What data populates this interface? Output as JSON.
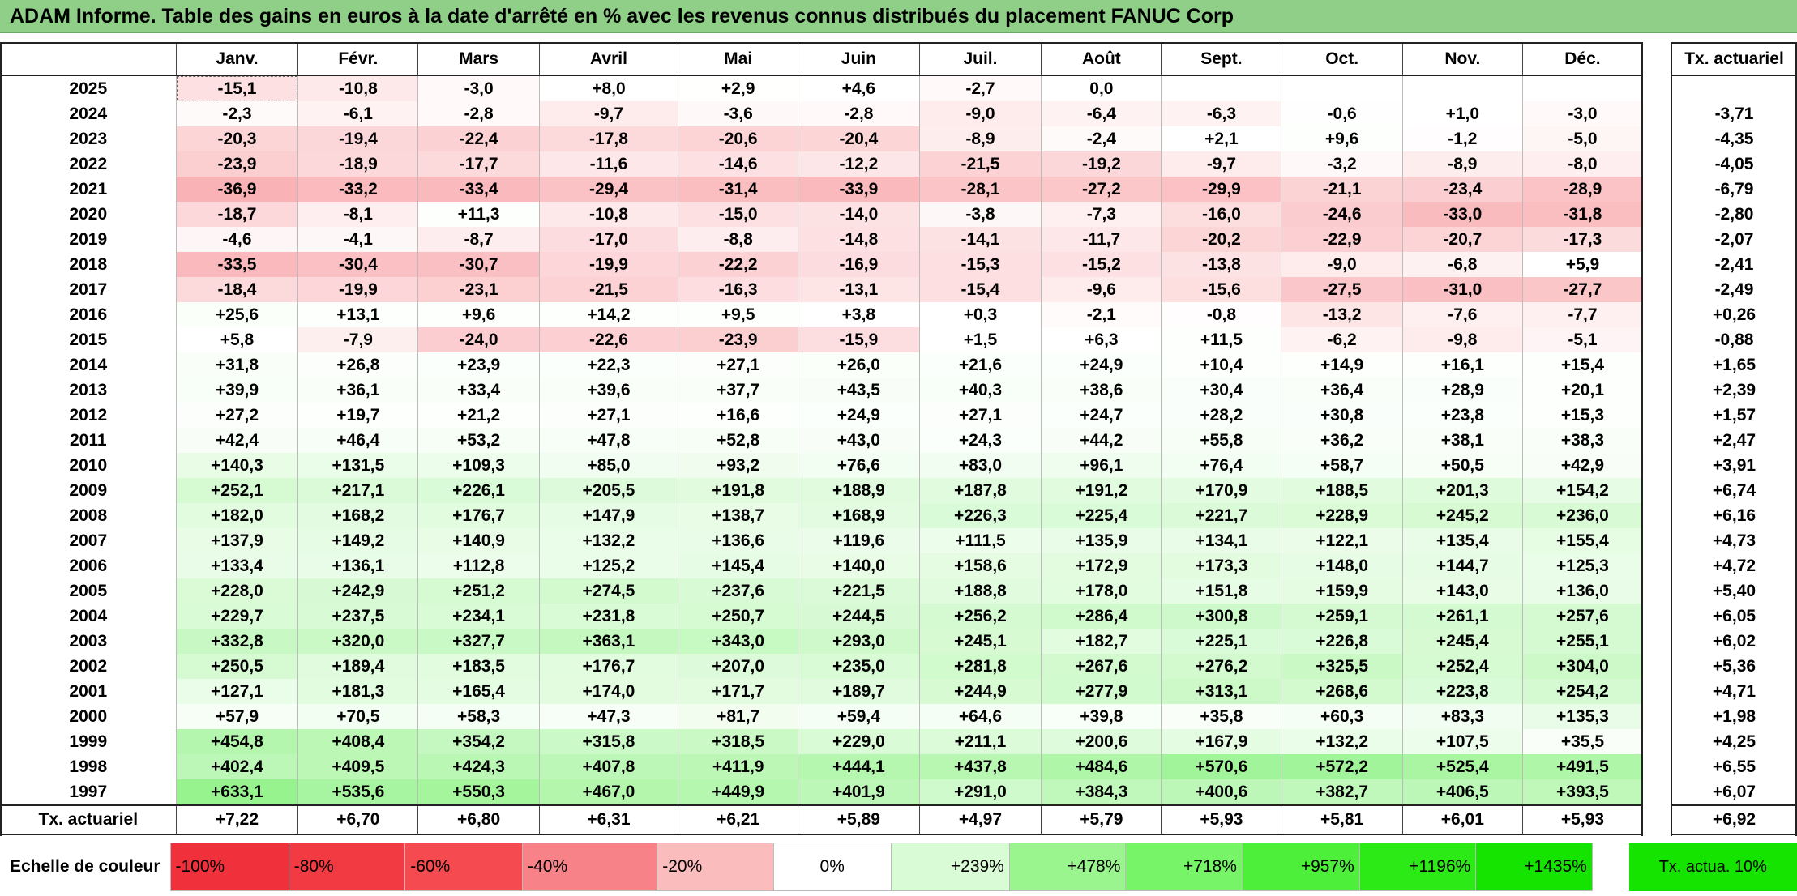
{
  "title": "ADAM Informe. Table des gains en euros à la date d'arrêté en % avec les revenus connus distribués du placement FANUC Corp",
  "months": [
    "Janv.",
    "Févr.",
    "Mars",
    "Avril",
    "Mai",
    "Juin",
    "Juil.",
    "Août",
    "Sept.",
    "Oct.",
    "Nov.",
    "Déc."
  ],
  "side_header": "Tx. actuariel",
  "rows": [
    {
      "year": "2025",
      "values": [
        "-15,1",
        "-10,8",
        "-3,0",
        "+8,0",
        "+2,9",
        "+4,6",
        "-2,7",
        "0,0",
        "",
        "",
        "",
        ""
      ],
      "rate": ""
    },
    {
      "year": "2024",
      "values": [
        "-2,3",
        "-6,1",
        "-2,8",
        "-9,7",
        "-3,6",
        "-2,8",
        "-9,0",
        "-6,4",
        "-6,3",
        "-0,6",
        "+1,0",
        "-3,0"
      ],
      "rate": "-3,71"
    },
    {
      "year": "2023",
      "values": [
        "-20,3",
        "-19,4",
        "-22,4",
        "-17,8",
        "-20,6",
        "-20,4",
        "-8,9",
        "-2,4",
        "+2,1",
        "+9,6",
        "-1,2",
        "-5,0"
      ],
      "rate": "-4,35"
    },
    {
      "year": "2022",
      "values": [
        "-23,9",
        "-18,9",
        "-17,7",
        "-11,6",
        "-14,6",
        "-12,2",
        "-21,5",
        "-19,2",
        "-9,7",
        "-3,2",
        "-8,9",
        "-8,0"
      ],
      "rate": "-4,05"
    },
    {
      "year": "2021",
      "values": [
        "-36,9",
        "-33,2",
        "-33,4",
        "-29,4",
        "-31,4",
        "-33,9",
        "-28,1",
        "-27,2",
        "-29,9",
        "-21,1",
        "-23,4",
        "-28,9"
      ],
      "rate": "-6,79"
    },
    {
      "year": "2020",
      "values": [
        "-18,7",
        "-8,1",
        "+11,3",
        "-10,8",
        "-15,0",
        "-14,0",
        "-3,8",
        "-7,3",
        "-16,0",
        "-24,6",
        "-33,0",
        "-31,8"
      ],
      "rate": "-2,80"
    },
    {
      "year": "2019",
      "values": [
        "-4,6",
        "-4,1",
        "-8,7",
        "-17,0",
        "-8,8",
        "-14,8",
        "-14,1",
        "-11,7",
        "-20,2",
        "-22,9",
        "-20,7",
        "-17,3"
      ],
      "rate": "-2,07"
    },
    {
      "year": "2018",
      "values": [
        "-33,5",
        "-30,4",
        "-30,7",
        "-19,9",
        "-22,2",
        "-16,9",
        "-15,3",
        "-15,2",
        "-13,8",
        "-9,0",
        "-6,8",
        "+5,9"
      ],
      "rate": "-2,41"
    },
    {
      "year": "2017",
      "values": [
        "-18,4",
        "-19,9",
        "-23,1",
        "-21,5",
        "-16,3",
        "-13,1",
        "-15,4",
        "-9,6",
        "-15,6",
        "-27,5",
        "-31,0",
        "-27,7"
      ],
      "rate": "-2,49"
    },
    {
      "year": "2016",
      "values": [
        "+25,6",
        "+13,1",
        "+9,6",
        "+14,2",
        "+9,5",
        "+3,8",
        "+0,3",
        "-2,1",
        "-0,8",
        "-13,2",
        "-7,6",
        "-7,7"
      ],
      "rate": "+0,26"
    },
    {
      "year": "2015",
      "values": [
        "+5,8",
        "-7,9",
        "-24,0",
        "-22,6",
        "-23,9",
        "-15,9",
        "+1,5",
        "+6,3",
        "+11,5",
        "-6,2",
        "-9,8",
        "-5,1"
      ],
      "rate": "-0,88"
    },
    {
      "year": "2014",
      "values": [
        "+31,8",
        "+26,8",
        "+23,9",
        "+22,3",
        "+27,1",
        "+26,0",
        "+21,6",
        "+24,9",
        "+10,4",
        "+14,9",
        "+16,1",
        "+15,4"
      ],
      "rate": "+1,65"
    },
    {
      "year": "2013",
      "values": [
        "+39,9",
        "+36,1",
        "+33,4",
        "+39,6",
        "+37,7",
        "+43,5",
        "+40,3",
        "+38,6",
        "+30,4",
        "+36,4",
        "+28,9",
        "+20,1"
      ],
      "rate": "+2,39"
    },
    {
      "year": "2012",
      "values": [
        "+27,2",
        "+19,7",
        "+21,2",
        "+27,1",
        "+16,6",
        "+24,9",
        "+27,1",
        "+24,7",
        "+28,2",
        "+30,8",
        "+23,8",
        "+15,3"
      ],
      "rate": "+1,57"
    },
    {
      "year": "2011",
      "values": [
        "+42,4",
        "+46,4",
        "+53,2",
        "+47,8",
        "+52,8",
        "+43,0",
        "+24,3",
        "+44,2",
        "+55,8",
        "+36,2",
        "+38,1",
        "+38,3"
      ],
      "rate": "+2,47"
    },
    {
      "year": "2010",
      "values": [
        "+140,3",
        "+131,5",
        "+109,3",
        "+85,0",
        "+93,2",
        "+76,6",
        "+83,0",
        "+96,1",
        "+76,4",
        "+58,7",
        "+50,5",
        "+42,9"
      ],
      "rate": "+3,91"
    },
    {
      "year": "2009",
      "values": [
        "+252,1",
        "+217,1",
        "+226,1",
        "+205,5",
        "+191,8",
        "+188,9",
        "+187,8",
        "+191,2",
        "+170,9",
        "+188,5",
        "+201,3",
        "+154,2"
      ],
      "rate": "+6,74"
    },
    {
      "year": "2008",
      "values": [
        "+182,0",
        "+168,2",
        "+176,7",
        "+147,9",
        "+138,7",
        "+168,9",
        "+226,3",
        "+225,4",
        "+221,7",
        "+228,9",
        "+245,2",
        "+236,0"
      ],
      "rate": "+6,16"
    },
    {
      "year": "2007",
      "values": [
        "+137,9",
        "+149,2",
        "+140,9",
        "+132,2",
        "+136,6",
        "+119,6",
        "+111,5",
        "+135,9",
        "+134,1",
        "+122,1",
        "+135,4",
        "+155,4"
      ],
      "rate": "+4,73"
    },
    {
      "year": "2006",
      "values": [
        "+133,4",
        "+136,1",
        "+112,8",
        "+125,2",
        "+145,4",
        "+140,0",
        "+158,6",
        "+172,9",
        "+173,3",
        "+148,0",
        "+144,7",
        "+125,3"
      ],
      "rate": "+4,72"
    },
    {
      "year": "2005",
      "values": [
        "+228,0",
        "+242,9",
        "+251,2",
        "+274,5",
        "+237,6",
        "+221,5",
        "+188,8",
        "+178,0",
        "+151,8",
        "+159,9",
        "+143,0",
        "+136,0"
      ],
      "rate": "+5,40"
    },
    {
      "year": "2004",
      "values": [
        "+229,7",
        "+237,5",
        "+234,1",
        "+231,8",
        "+250,7",
        "+244,5",
        "+256,2",
        "+286,4",
        "+300,8",
        "+259,1",
        "+261,1",
        "+257,6"
      ],
      "rate": "+6,05"
    },
    {
      "year": "2003",
      "values": [
        "+332,8",
        "+320,0",
        "+327,7",
        "+363,1",
        "+343,0",
        "+293,0",
        "+245,1",
        "+182,7",
        "+225,1",
        "+226,8",
        "+245,4",
        "+255,1"
      ],
      "rate": "+6,02"
    },
    {
      "year": "2002",
      "values": [
        "+250,5",
        "+189,4",
        "+183,5",
        "+176,7",
        "+207,0",
        "+235,0",
        "+281,8",
        "+267,6",
        "+276,2",
        "+325,5",
        "+252,4",
        "+304,0"
      ],
      "rate": "+5,36"
    },
    {
      "year": "2001",
      "values": [
        "+127,1",
        "+181,3",
        "+165,4",
        "+174,0",
        "+171,7",
        "+189,7",
        "+244,9",
        "+277,9",
        "+313,1",
        "+268,6",
        "+223,8",
        "+254,2"
      ],
      "rate": "+4,71"
    },
    {
      "year": "2000",
      "values": [
        "+57,9",
        "+70,5",
        "+58,3",
        "+47,3",
        "+81,7",
        "+59,4",
        "+64,6",
        "+39,8",
        "+35,8",
        "+60,3",
        "+83,3",
        "+135,3"
      ],
      "rate": "+1,98"
    },
    {
      "year": "1999",
      "values": [
        "+454,8",
        "+408,4",
        "+354,2",
        "+315,8",
        "+318,5",
        "+229,0",
        "+211,1",
        "+200,6",
        "+167,9",
        "+132,2",
        "+107,5",
        "+35,5"
      ],
      "rate": "+4,25"
    },
    {
      "year": "1998",
      "values": [
        "+402,4",
        "+409,5",
        "+424,3",
        "+407,8",
        "+411,9",
        "+444,1",
        "+437,8",
        "+484,6",
        "+570,6",
        "+572,2",
        "+525,4",
        "+491,5"
      ],
      "rate": "+6,55"
    },
    {
      "year": "1997",
      "values": [
        "+633,1",
        "+535,6",
        "+550,3",
        "+467,0",
        "+449,9",
        "+401,9",
        "+291,0",
        "+384,3",
        "+400,6",
        "+382,7",
        "+406,5",
        "+393,5"
      ],
      "rate": "+6,07"
    }
  ],
  "footer": {
    "label": "Tx. actuariel",
    "values": [
      "+7,22",
      "+6,70",
      "+6,80",
      "+6,31",
      "+6,21",
      "+5,89",
      "+4,97",
      "+5,79",
      "+5,93",
      "+5,81",
      "+6,01",
      "+5,93"
    ],
    "rate": "+6,92"
  },
  "legend": {
    "label": "Echelle de couleur",
    "items": [
      {
        "text": "-100%",
        "color": "#f0303a",
        "align": "left"
      },
      {
        "text": "-80%",
        "color": "#f23a42",
        "align": "left"
      },
      {
        "text": "-60%",
        "color": "#f44a50",
        "align": "left"
      },
      {
        "text": "-40%",
        "color": "#f78287",
        "align": "left"
      },
      {
        "text": "-20%",
        "color": "#fbbcbe",
        "align": "left"
      },
      {
        "text": "0%",
        "color": "#ffffff",
        "align": "center"
      },
      {
        "text": "+239%",
        "color": "#d9fbd5",
        "align": "right"
      },
      {
        "text": "+478%",
        "color": "#9bf58f",
        "align": "right"
      },
      {
        "text": "+718%",
        "color": "#77f468",
        "align": "right"
      },
      {
        "text": "+957%",
        "color": "#4def3a",
        "align": "right"
      },
      {
        "text": "+1196%",
        "color": "#2cea16",
        "align": "right"
      },
      {
        "text": "+1435%",
        "color": "#14e400",
        "align": "right"
      }
    ],
    "side_text": "Tx. actua. 10%",
    "side_color": "#14e400"
  },
  "colors": {
    "title_bar": "#8fcf88",
    "negative_max": "#f0303a",
    "positive_max": "#14e400"
  }
}
